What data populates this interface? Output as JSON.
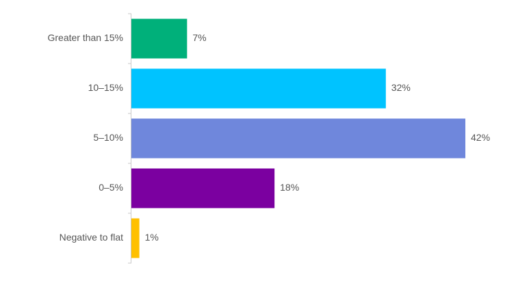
{
  "chart_data": {
    "type": "hbar",
    "categories": [
      "Greater than 15%",
      "10–15%",
      "5–10%",
      "0–5%",
      "Negative to flat"
    ],
    "values": [
      7,
      32,
      42,
      18,
      1
    ],
    "value_labels": [
      "7%",
      "32%",
      "42%",
      "18%",
      "1%"
    ],
    "colors": [
      "#00b07a",
      "#00c3ff",
      "#6f87dc",
      "#7b00a0",
      "#ffc000"
    ]
  }
}
